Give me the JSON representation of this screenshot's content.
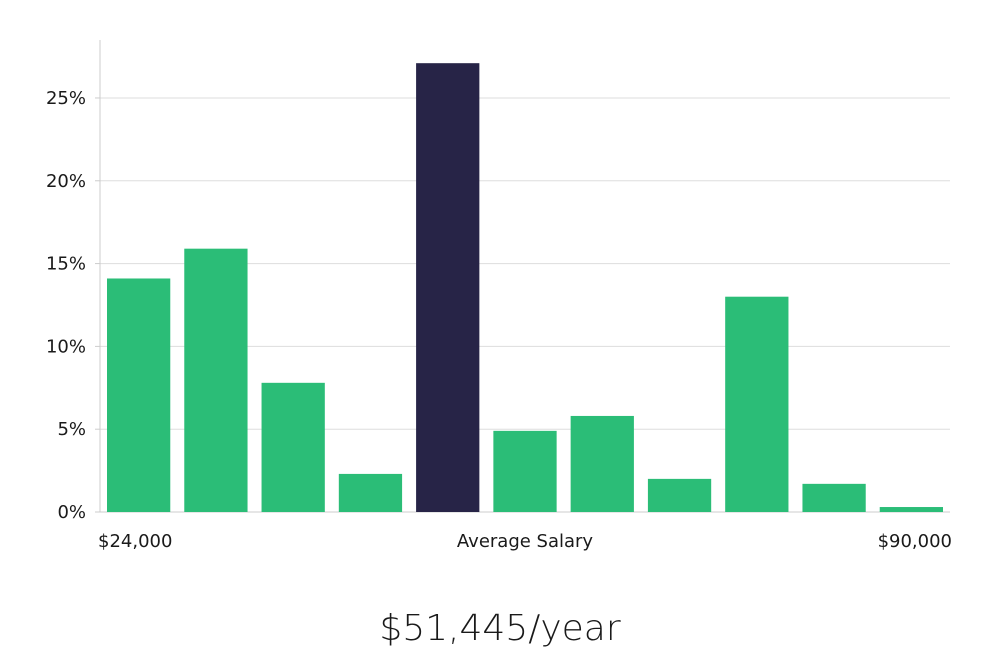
{
  "chart_data": {
    "type": "bar",
    "values": [
      14.1,
      15.9,
      7.8,
      2.3,
      27.1,
      4.9,
      5.8,
      2.0,
      13.0,
      1.7,
      0.3
    ],
    "highlight_index": 4,
    "ylim": [
      0,
      28.5
    ],
    "yticks": [
      0,
      5,
      10,
      15,
      20,
      25
    ],
    "ytick_suffix": "%",
    "x_labels": {
      "left": "$24,000",
      "center": "Average Salary",
      "right": "$90,000"
    },
    "grid": true,
    "colors": {
      "bar": "#2bbd77",
      "highlight": "#272447",
      "grid": "#dddddd",
      "axis": "#cccccc"
    }
  },
  "salary": "$51,445/year"
}
